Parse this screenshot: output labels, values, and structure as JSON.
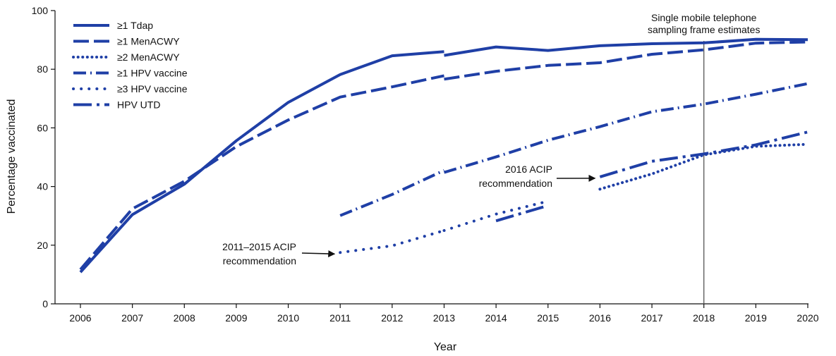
{
  "chart_data": {
    "type": "line",
    "xlabel": "Year",
    "ylabel": "Percentage vaccinated",
    "ylim": [
      0,
      100
    ],
    "yticks": [
      0,
      20,
      40,
      60,
      80,
      100
    ],
    "x": [
      2006,
      2007,
      2008,
      2009,
      2010,
      2011,
      2012,
      2013,
      2014,
      2015,
      2016,
      2017,
      2018,
      2019,
      2020
    ],
    "grid": false,
    "legend_position": "top-left",
    "line_color": "#1f3fa6",
    "series": [
      {
        "name": "≥1 Tdap",
        "style": "solid",
        "segments": [
          {
            "x": [
              2006,
              2007,
              2008,
              2009,
              2010,
              2011,
              2012,
              2013
            ],
            "y": [
              10.8,
              30.4,
              40.8,
              55.6,
              68.7,
              78.2,
              84.6,
              86.0
            ]
          },
          {
            "x": [
              2013,
              2014,
              2015,
              2016,
              2017,
              2018,
              2019,
              2020
            ],
            "y": [
              84.7,
              87.6,
              86.4,
              88.0,
              88.7,
              89.0,
              90.2,
              90.1
            ]
          }
        ]
      },
      {
        "name": "≥1 MenACWY",
        "style": "dash",
        "segments": [
          {
            "x": [
              2006,
              2007,
              2008,
              2009,
              2010,
              2011,
              2012,
              2013
            ],
            "y": [
              11.7,
              32.4,
              41.8,
              53.6,
              62.7,
              70.5,
              74.0,
              77.8
            ]
          },
          {
            "x": [
              2013,
              2014,
              2015,
              2016,
              2017,
              2018,
              2019,
              2020
            ],
            "y": [
              76.6,
              79.3,
              81.3,
              82.2,
              85.1,
              86.6,
              88.9,
              89.3
            ]
          }
        ]
      },
      {
        "name": "≥2 MenACWY",
        "style": "dot",
        "segments": [
          {
            "x": [
              2016,
              2017,
              2018,
              2019,
              2020
            ],
            "y": [
              39.1,
              44.3,
              50.8,
              53.7,
              54.4
            ]
          }
        ]
      },
      {
        "name": "≥1 HPV vaccine",
        "style": "dashdot",
        "segments": [
          {
            "x": [
              2011,
              2012,
              2013
            ],
            "y": [
              30.1,
              37.3,
              45.5
            ]
          },
          {
            "x": [
              2013,
              2014,
              2015,
              2016,
              2017,
              2018,
              2019,
              2020
            ],
            "y": [
              44.8,
              50.1,
              55.8,
              60.4,
              65.5,
              68.1,
              71.5,
              75.1
            ]
          }
        ]
      },
      {
        "name": "≥3 HPV vaccine",
        "style": "sparsedot",
        "segments": [
          {
            "x": [
              2011,
              2012,
              2013
            ],
            "y": [
              17.5,
              19.8,
              25.0
            ]
          },
          {
            "x": [
              2013,
              2014,
              2015
            ],
            "y": [
              25.0,
              30.6,
              35.0
            ]
          }
        ]
      },
      {
        "name": "HPV UTD",
        "style": "longdashdot",
        "segments": [
          {
            "x": [
              2014,
              2015
            ],
            "y": [
              28.3,
              33.5
            ]
          },
          {
            "x": [
              2016,
              2017,
              2018,
              2019,
              2020
            ],
            "y": [
              43.3,
              48.6,
              51.1,
              54.2,
              58.6
            ]
          }
        ]
      }
    ],
    "reference_line": {
      "x": 2018,
      "label_lines": [
        "Single mobile telephone",
        "sampling frame estimates"
      ]
    },
    "annotations": [
      {
        "label_lines": [
          "2011–2015 ACIP",
          "recommendation"
        ],
        "x": 2011,
        "y": 17.5
      },
      {
        "label_lines": [
          "2016 ACIP",
          "recommendation"
        ],
        "x": 2016,
        "y": 43.3
      }
    ]
  }
}
